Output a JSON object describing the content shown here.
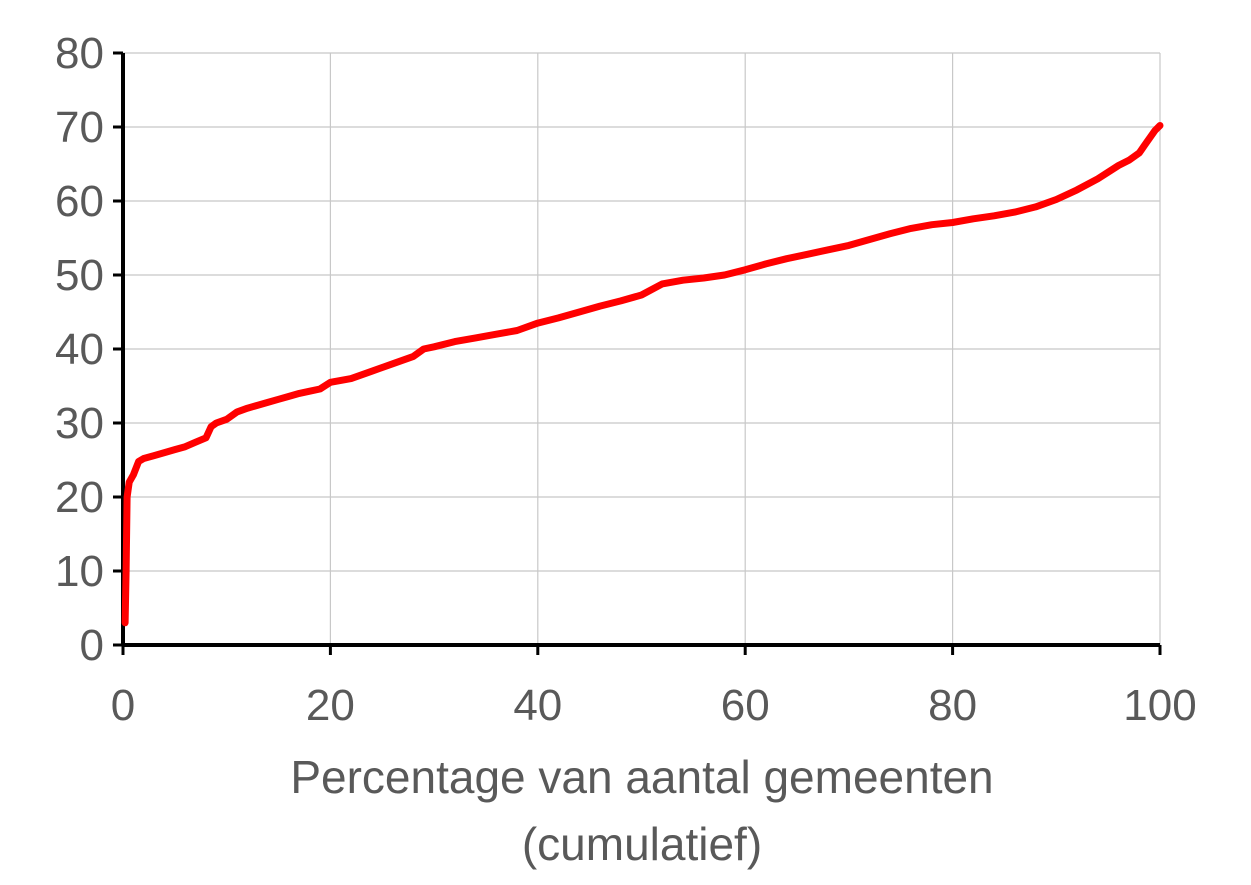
{
  "chart_data": {
    "type": "line",
    "title": "",
    "xlabel_lines": [
      "Percentage van aantal gemeenten",
      "(cumulatief)"
    ],
    "ylabel": "",
    "xlim": [
      0,
      100
    ],
    "ylim": [
      0,
      80
    ],
    "x_ticks": [
      0,
      20,
      40,
      60,
      80,
      100
    ],
    "y_ticks": [
      0,
      10,
      20,
      30,
      40,
      50,
      60,
      70,
      80
    ],
    "grid": true,
    "legend": "none",
    "colors": {
      "line": "#ff0000",
      "grid": "#c8c8c8",
      "axis": "#000000",
      "text": "#595959"
    },
    "series": [
      {
        "x": [
          0.2,
          0.3,
          0.4,
          0.6,
          1.0,
          1.5,
          2.0,
          3,
          4,
          5,
          6,
          7,
          8,
          8.5,
          9,
          10,
          11,
          12,
          13,
          14,
          15,
          16,
          17,
          18,
          19,
          20,
          22,
          24,
          26,
          28,
          29,
          30,
          32,
          34,
          36,
          38,
          40,
          42,
          44,
          46,
          48,
          50,
          52,
          54,
          56,
          58,
          60,
          62,
          64,
          66,
          68,
          70,
          72,
          74,
          76,
          78,
          80,
          82,
          84,
          86,
          88,
          90,
          92,
          94,
          96,
          97,
          98,
          98.5,
          99,
          99.5,
          100
        ],
        "y": [
          3,
          10,
          20,
          22,
          23,
          24.8,
          25.2,
          25.6,
          26,
          26.4,
          26.8,
          27.4,
          28,
          29.5,
          30,
          30.5,
          31.5,
          32,
          32.4,
          32.8,
          33.2,
          33.6,
          34,
          34.3,
          34.6,
          35.5,
          36,
          37,
          38,
          39,
          40,
          40.3,
          41,
          41.5,
          42,
          42.5,
          43.5,
          44.2,
          45,
          45.8,
          46.5,
          47.3,
          48.8,
          49.3,
          49.6,
          50,
          50.7,
          51.5,
          52.2,
          52.8,
          53.4,
          54,
          54.8,
          55.6,
          56.3,
          56.8,
          57.1,
          57.6,
          58,
          58.5,
          59.2,
          60.2,
          61.5,
          63,
          64.8,
          65.5,
          66.5,
          67.5,
          68.5,
          69.5,
          70.2
        ]
      }
    ]
  }
}
